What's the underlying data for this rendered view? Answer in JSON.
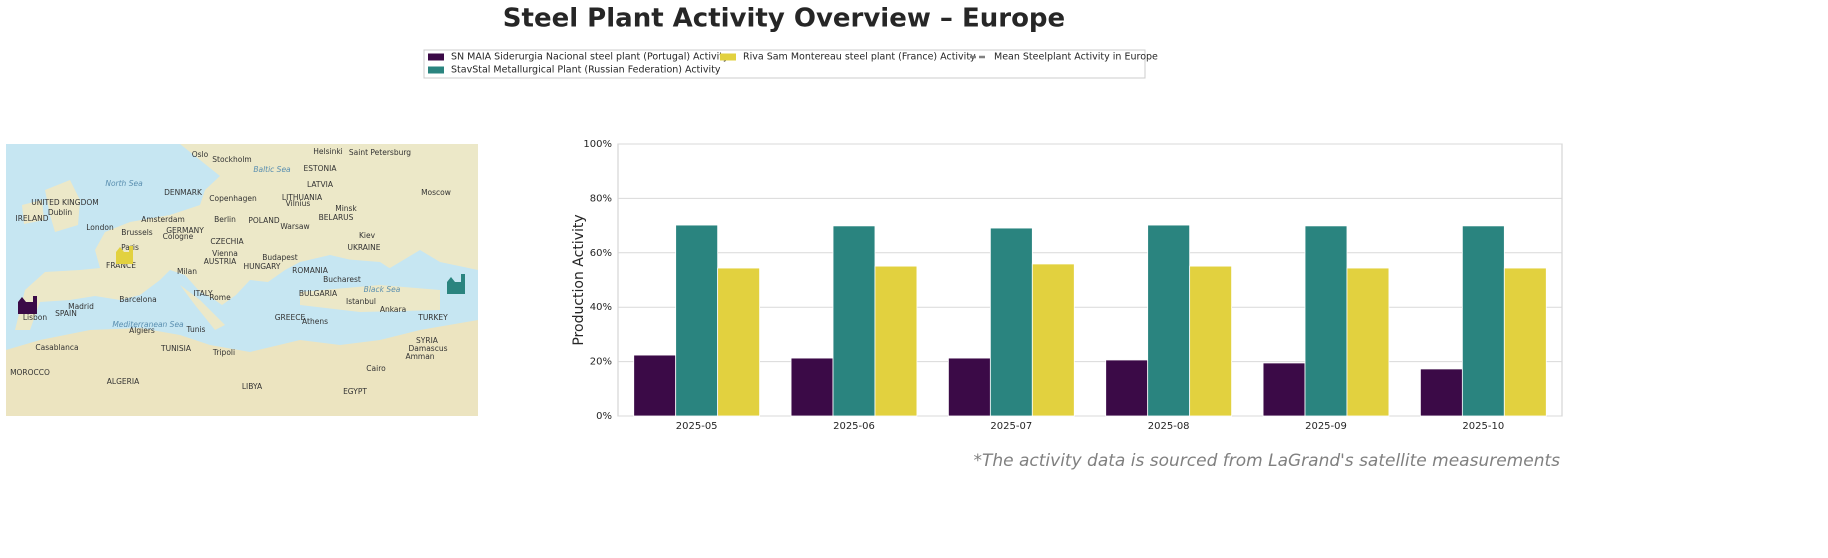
{
  "chart_data": {
    "type": "bar",
    "title": "Steel Plant Activity Overview – Europe",
    "ylabel": "Production Activity",
    "categories": [
      "2025-05",
      "2025-06",
      "2025-07",
      "2025-08",
      "2025-09",
      "2025-10"
    ],
    "series": [
      {
        "name": "SN MAIA Siderurgia Nacional steel plant (Portugal) Activity",
        "color": "#3b0a47",
        "values": [
          22.4,
          21.3,
          21.3,
          20.6,
          19.5,
          17.3
        ]
      },
      {
        "name": "StavStal Metallurgical Plant (Russian Federation) Activity",
        "color": "#2a847f",
        "values": [
          70.2,
          69.9,
          69.1,
          70.2,
          69.9,
          69.9
        ]
      },
      {
        "name": "Riva Sam Montereau steel plant (France) Activity",
        "color": "#e2d13f",
        "values": [
          54.4,
          55.1,
          55.9,
          55.1,
          54.4,
          54.4
        ]
      }
    ],
    "reference_lines": [
      {
        "name": "Mean Steelplant Activity in Europe",
        "color": "#808080",
        "style": "dashed"
      }
    ],
    "ylim": [
      0,
      100
    ],
    "yticks": [
      {
        "value": 0,
        "label": "0%"
      },
      {
        "value": 20,
        "label": "20%"
      },
      {
        "value": 40,
        "label": "40%"
      },
      {
        "value": 60,
        "label": "60%"
      },
      {
        "value": 80,
        "label": "80%"
      },
      {
        "value": 100,
        "label": "100%"
      }
    ],
    "grid": true,
    "footnote": "*The activity data is sourced from LaGrand's satellite measurements"
  },
  "map": {
    "labels": [
      "Oslo",
      "Stockholm",
      "Helsinki",
      "Saint Petersburg",
      "North Sea",
      "Baltic Sea",
      "DENMARK",
      "Copenhagen",
      "ESTONIA",
      "LATVIA",
      "LITHUANIA",
      "Vilnius",
      "Minsk",
      "Moscow",
      "UNITED KINGDOM",
      "Dublin",
      "IRELAND",
      "London",
      "Amsterdam",
      "Berlin",
      "POLAND",
      "Warsaw",
      "BELARUS",
      "Brussels",
      "GERMANY",
      "Cologne",
      "Paris",
      "CZECHIA",
      "Kiev",
      "UKRAINE",
      "FRANCE",
      "Vienna",
      "AUSTRIA",
      "HUNGARY",
      "Budapest",
      "Milan",
      "ROMANIA",
      "Bucharest",
      "Black Sea",
      "BULGARIA",
      "ITALY",
      "Rome",
      "Barcelona",
      "Madrid",
      "SPAIN",
      "Lisbon",
      "Istanbul",
      "Ankara",
      "TURKEY",
      "GREECE",
      "Athens",
      "Mediterranean Sea",
      "Tunis",
      "Algiers",
      "TUNISIA",
      "Casablanca",
      "MOROCCO",
      "ALGERIA",
      "Tripoli",
      "LIBYA",
      "EGYPT",
      "Cairo",
      "SYRIA",
      "Damascus",
      "Amman"
    ]
  }
}
